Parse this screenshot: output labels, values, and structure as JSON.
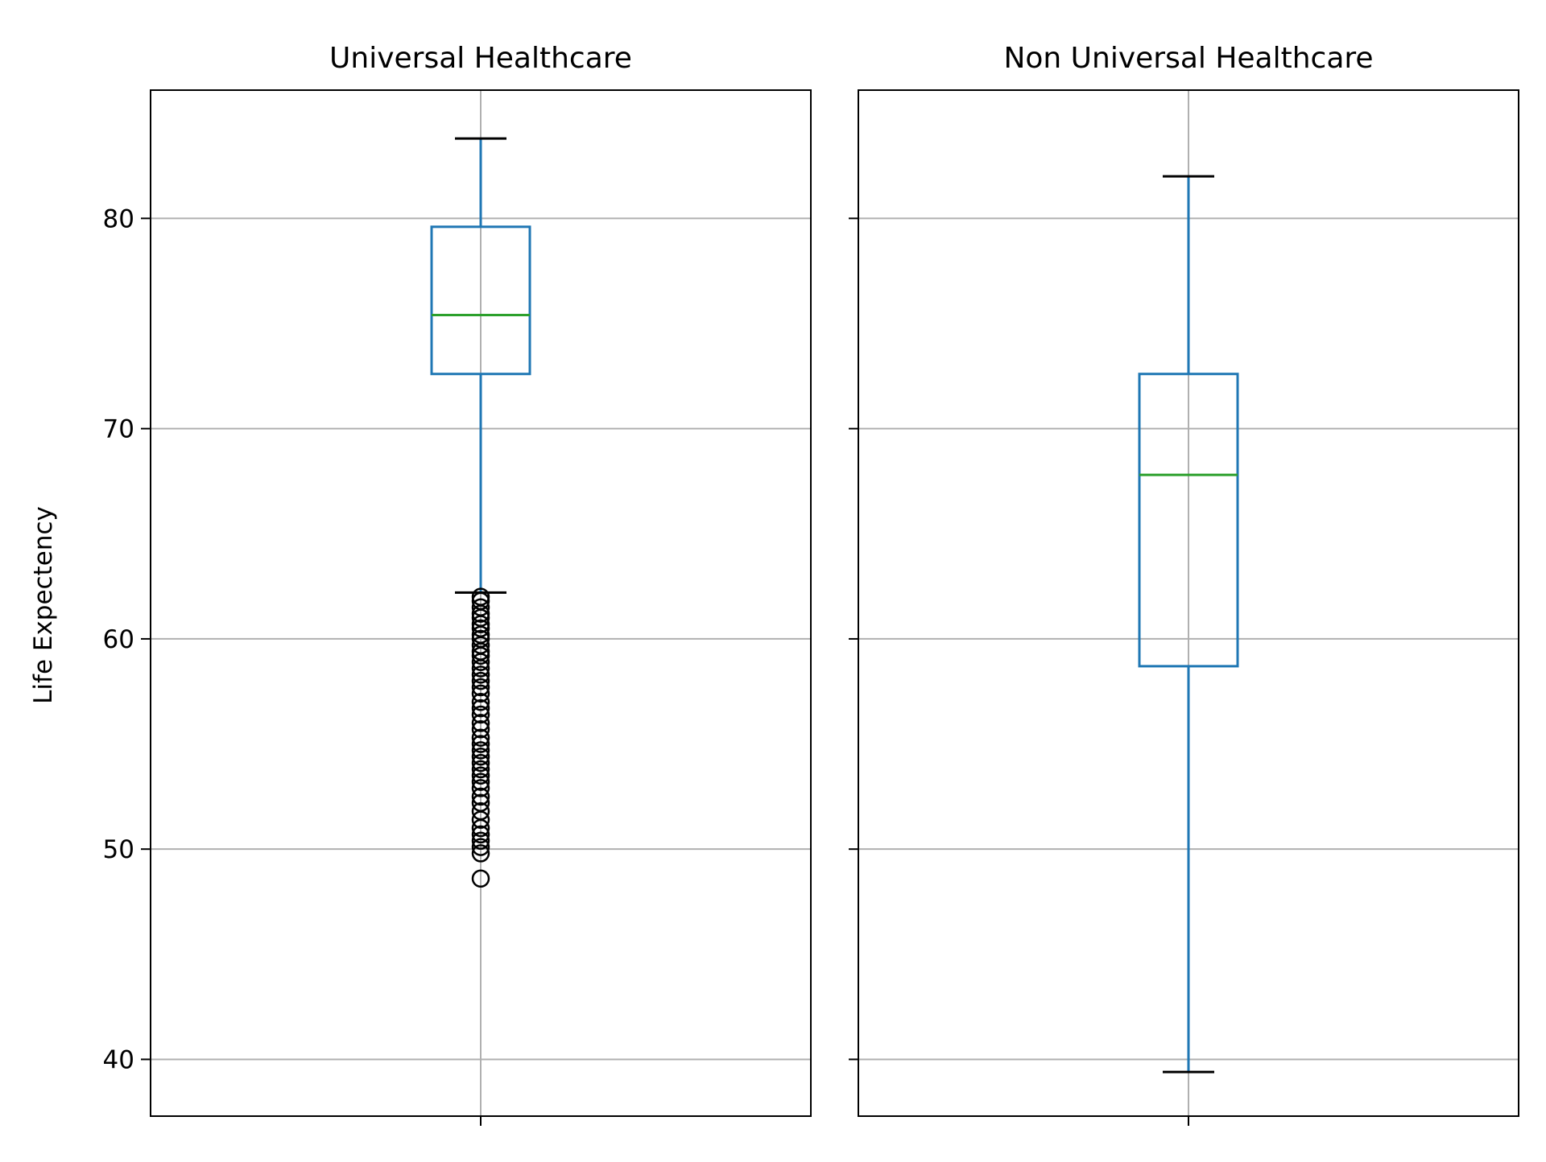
{
  "chart_data": {
    "type": "box",
    "ylabel": "Life Expectency",
    "ylim": [
      37.3,
      86.1
    ],
    "yticks": [
      40,
      50,
      60,
      70,
      80
    ],
    "grid": true,
    "sharey": true,
    "colors": {
      "box": "#1f77b4",
      "median": "#2ca02c",
      "cap": "#000000",
      "flier": "#000000",
      "grid": "#b0b0b0"
    },
    "panels": [
      {
        "title": "Universal Healthcare",
        "whisker_low": 62.2,
        "q1": 72.6,
        "median": 75.4,
        "q3": 79.6,
        "whisker_high": 83.8,
        "outliers": [
          62.0,
          61.8,
          61.5,
          61.2,
          61.0,
          60.7,
          60.5,
          60.2,
          60.0,
          59.7,
          59.4,
          59.2,
          58.9,
          58.6,
          58.3,
          58.0,
          57.7,
          57.4,
          57.0,
          56.7,
          56.4,
          56.0,
          55.7,
          55.3,
          55.0,
          54.7,
          54.4,
          54.1,
          53.8,
          53.5,
          53.2,
          52.9,
          52.5,
          52.2,
          51.8,
          51.4,
          51.0,
          50.7,
          50.4,
          50.1,
          49.8,
          48.6
        ]
      },
      {
        "title": "Non Universal Healthcare",
        "whisker_low": 39.4,
        "q1": 58.7,
        "median": 67.8,
        "q3": 72.6,
        "whisker_high": 82.0,
        "outliers": []
      }
    ]
  }
}
